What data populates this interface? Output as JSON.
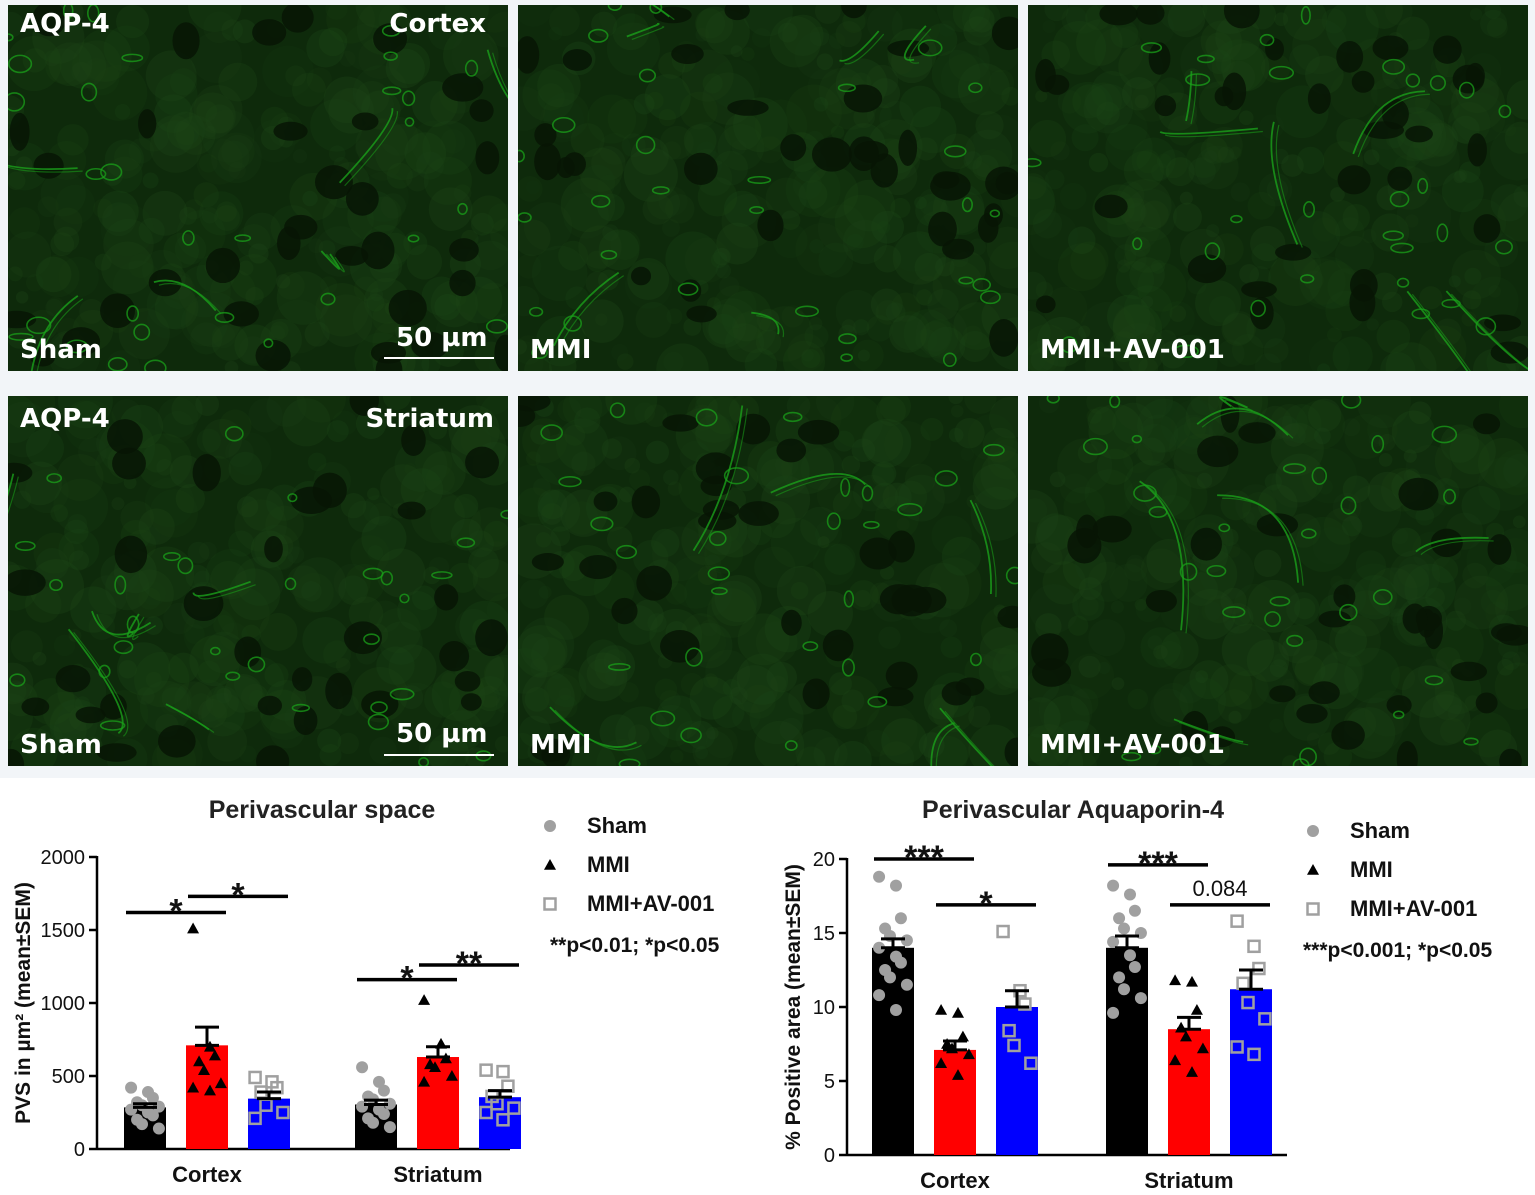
{
  "panels": [
    {
      "tl": "AQP-4",
      "tr": "Cortex",
      "bl": "Sham",
      "scale": "50 µm"
    },
    {
      "tl": "",
      "tr": "",
      "bl": "MMI",
      "scale": ""
    },
    {
      "tl": "",
      "tr": "",
      "bl": "MMI+AV-001",
      "scale": ""
    },
    {
      "tl": "AQP-4",
      "tr": "Striatum",
      "bl": "Sham",
      "scale": "50 µm"
    },
    {
      "tl": "",
      "tr": "",
      "bl": "MMI",
      "scale": ""
    },
    {
      "tl": "",
      "tr": "",
      "bl": "MMI+AV-001",
      "scale": ""
    }
  ],
  "colors": {
    "sham": "#000000",
    "mmi": "#ff0000",
    "av": "#0000ff",
    "sham_pts": "#a0a0a0",
    "stain": "#1aa01a"
  },
  "chart_data": [
    {
      "type": "bar",
      "title": "Perivascular space",
      "ylabel": "PVS in µm² (mean±SEM)",
      "categories": [
        "Cortex",
        "Striatum"
      ],
      "ylim": [
        0,
        2000
      ],
      "yticks": [
        0,
        500,
        1000,
        1500,
        2000
      ],
      "series": [
        {
          "name": "Sham",
          "values": [
            285,
            305
          ],
          "sem": [
            25,
            30
          ],
          "points": [
            [
              420,
              390,
              350,
              320,
              300,
              290,
              270,
              250,
              230,
              200,
              170,
              140
            ],
            [
              560,
              460,
              400,
              360,
              340,
              310,
              290,
              270,
              240,
              210,
              180,
              150
            ]
          ]
        },
        {
          "name": "MMI",
          "values": [
            710,
            630
          ],
          "sem": [
            125,
            70
          ],
          "points": [
            [
              1510,
              700,
              640,
              600,
              540,
              450,
              420,
              400
            ],
            [
              1020,
              720,
              620,
              580,
              560,
              500,
              460
            ]
          ]
        },
        {
          "name": "MMI+AV-001",
          "values": [
            345,
            355
          ],
          "sem": [
            45,
            45
          ],
          "points": [
            [
              490,
              460,
              420,
              390,
              300,
              250,
              210
            ],
            [
              540,
              530,
              430,
              360,
              310,
              280,
              250,
              200
            ]
          ]
        }
      ],
      "significance": [
        {
          "group": "Cortex",
          "pair": [
            "Sham",
            "MMI"
          ],
          "label": "*",
          "y": 1620
        },
        {
          "group": "Cortex",
          "pair": [
            "MMI",
            "MMI+AV-001"
          ],
          "label": "*",
          "y": 1730
        },
        {
          "group": "Striatum",
          "pair": [
            "Sham",
            "MMI"
          ],
          "label": "*",
          "y": 1160
        },
        {
          "group": "Striatum",
          "pair": [
            "MMI",
            "MMI+AV-001"
          ],
          "label": "**",
          "y": 1260
        }
      ],
      "legend": [
        "Sham",
        "MMI",
        "MMI+AV-001"
      ],
      "note": "**p<0.01; *p<0.05"
    },
    {
      "type": "bar",
      "title": "Perivascular Aquaporin-4",
      "ylabel": "% Positive area (mean±SEM)",
      "categories": [
        "Cortex",
        "Striatum"
      ],
      "ylim": [
        0,
        20
      ],
      "yticks": [
        0,
        5,
        10,
        15,
        20
      ],
      "series": [
        {
          "name": "Sham",
          "values": [
            14.0,
            14.0
          ],
          "sem": [
            0.6,
            0.8
          ],
          "points": [
            [
              18.8,
              18.2,
              16.0,
              15.3,
              14.8,
              14.5,
              14.0,
              13.4,
              13.0,
              12.5,
              12.0,
              11.5,
              10.8,
              9.8
            ],
            [
              18.2,
              17.6,
              16.5,
              16.0,
              15.3,
              15.0,
              14.4,
              13.5,
              12.7,
              12.0,
              11.2,
              10.6,
              9.6
            ]
          ]
        },
        {
          "name": "MMI",
          "values": [
            7.1,
            8.5
          ],
          "sem": [
            0.6,
            0.8
          ],
          "points": [
            [
              9.8,
              9.6,
              8.0,
              7.5,
              7.2,
              6.8,
              6.2,
              5.4
            ],
            [
              11.8,
              11.7,
              9.8,
              8.6,
              8.0,
              7.2,
              6.4,
              5.6
            ]
          ]
        },
        {
          "name": "MMI+AV-001",
          "values": [
            10.0,
            11.2
          ],
          "sem": [
            1.1,
            1.3
          ],
          "points": [
            [
              15.1,
              11.1,
              10.2,
              8.4,
              7.4,
              6.2
            ],
            [
              15.8,
              14.1,
              12.6,
              11.6,
              10.3,
              9.2,
              7.3,
              6.8
            ]
          ]
        }
      ],
      "significance": [
        {
          "group": "Cortex",
          "pair": [
            "Sham",
            "MMI"
          ],
          "label": "***",
          "y": 20.0
        },
        {
          "group": "Cortex",
          "pair": [
            "MMI",
            "MMI+AV-001"
          ],
          "label": "*",
          "y": 16.9
        },
        {
          "group": "Striatum",
          "pair": [
            "Sham",
            "MMI"
          ],
          "label": "***",
          "y": 19.6
        },
        {
          "group": "Striatum",
          "pair": [
            "MMI",
            "MMI+AV-001"
          ],
          "label": "0.084",
          "y": 16.9
        }
      ],
      "legend": [
        "Sham",
        "MMI",
        "MMI+AV-001"
      ],
      "note": "***p<0.001; *p<0.05"
    }
  ]
}
